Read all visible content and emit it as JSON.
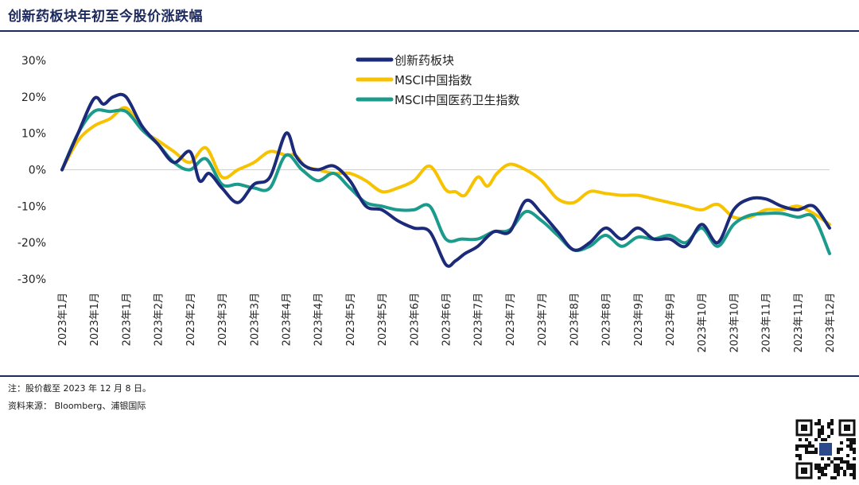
{
  "header": {
    "title": "创新药板块年初至今股价涨跌幅"
  },
  "footer": {
    "note": "注：股价截至 2023 年 12 月 8 日。",
    "source": "资料来源：  Bloomberg、浦银国际"
  },
  "colors": {
    "navy": "#1c2a7a",
    "gold": "#f7c200",
    "teal": "#1a9b8c",
    "rule": "#1c2a5e"
  },
  "chart_data": {
    "type": "line",
    "title": "创新药板块年初至今股价涨跌幅",
    "ylim": [
      -30,
      30
    ],
    "yticks": [
      -30,
      -20,
      -10,
      0,
      10,
      20,
      30
    ],
    "ytick_labels": [
      "-30%",
      "-20%",
      "-10%",
      "0%",
      "10%",
      "20%",
      "30%"
    ],
    "categories": [
      "2023年1月",
      "2023年1月",
      "2023年1月",
      "2023年2月",
      "2023年2月",
      "2023年3月",
      "2023年3月",
      "2023年4月",
      "2023年4月",
      "2023年5月",
      "2023年5月",
      "2023年6月",
      "2023年6月",
      "2023年7月",
      "2023年7月",
      "2023年7月",
      "2023年8月",
      "2023年8月",
      "2023年9月",
      "2023年9月",
      "2023年10月",
      "2023年10月",
      "2023年11月",
      "2023年11月",
      "2023年12月"
    ],
    "legend_position": "top-center",
    "series": [
      {
        "name": "创新药板块",
        "color": "#1c2a7a",
        "x": [
          0,
          0.5,
          1,
          1.3,
          1.6,
          2,
          2.5,
          3,
          3.5,
          4,
          4.3,
          4.6,
          5,
          5.5,
          6,
          6.5,
          7,
          7.3,
          7.6,
          8,
          8.5,
          9,
          9.5,
          10,
          10.5,
          11,
          11.5,
          12,
          12.3,
          12.6,
          13,
          13.5,
          14,
          14.5,
          15,
          15.5,
          16,
          16.5,
          17,
          17.5,
          18,
          18.5,
          19,
          19.5,
          20,
          20.5,
          21,
          21.5,
          22,
          22.5,
          23,
          23.5,
          24
        ],
        "values": [
          0,
          10,
          19.5,
          18,
          20,
          20,
          12,
          7,
          2,
          5,
          -3,
          -1,
          -5,
          -9,
          -4,
          -2,
          10,
          4,
          1,
          0,
          1,
          -3,
          -10,
          -11,
          -14,
          -16,
          -17,
          -26,
          -25,
          -23,
          -21,
          -17,
          -17,
          -8.5,
          -12,
          -17,
          -22,
          -20,
          -16,
          -19,
          -16,
          -19,
          -19,
          -21,
          -15,
          -20,
          -11,
          -8,
          -8,
          -10,
          -11,
          -10,
          -16
        ]
      },
      {
        "name": "MSCI中国指数",
        "color": "#f7c200",
        "x": [
          0,
          0.5,
          1,
          1.5,
          2,
          2.5,
          3,
          3.5,
          4,
          4.5,
          5,
          5.5,
          6,
          6.5,
          7,
          7.3,
          7.6,
          8,
          8.5,
          9,
          9.5,
          10,
          10.5,
          11,
          11.5,
          12,
          12.3,
          12.6,
          13,
          13.3,
          13.6,
          14,
          14.5,
          15,
          15.5,
          16,
          16.5,
          17,
          17.5,
          18,
          18.5,
          19,
          19.5,
          20,
          20.5,
          21,
          21.5,
          22,
          22.5,
          23,
          23.5,
          24
        ],
        "values": [
          0,
          8,
          12,
          14,
          17,
          11,
          8,
          5,
          2,
          6,
          -2,
          0,
          2,
          5,
          4,
          4,
          1,
          0,
          -1,
          -1,
          -3,
          -6,
          -5,
          -3,
          1,
          -5.5,
          -6,
          -7,
          -2,
          -4.5,
          -1,
          1.5,
          0,
          -3,
          -8,
          -9,
          -6,
          -6.5,
          -7,
          -7,
          -8,
          -9,
          -10,
          -11,
          -9.5,
          -13,
          -13,
          -11,
          -11,
          -10,
          -12,
          -15
        ]
      },
      {
        "name": "MSCI中国医药卫生指数",
        "color": "#1a9b8c",
        "x": [
          0,
          0.5,
          1,
          1.5,
          2,
          2.5,
          3,
          3.5,
          4,
          4.5,
          5,
          5.5,
          6,
          6.5,
          7,
          7.5,
          8,
          8.5,
          9,
          9.5,
          10,
          10.5,
          11,
          11.5,
          12,
          12.5,
          13,
          13.5,
          14,
          14.5,
          15,
          15.5,
          16,
          16.5,
          17,
          17.5,
          18,
          18.5,
          19,
          19.5,
          20,
          20.5,
          21,
          21.5,
          22,
          22.5,
          23,
          23.5,
          24
        ],
        "values": [
          0,
          10,
          16,
          16,
          16,
          11,
          7,
          2,
          0,
          3,
          -4,
          -4,
          -5,
          -5,
          4,
          0,
          -3,
          -1,
          -5,
          -9,
          -10,
          -11,
          -11,
          -10,
          -19,
          -19,
          -19,
          -17,
          -16.5,
          -11.5,
          -14,
          -18,
          -22,
          -21,
          -18,
          -21,
          -18.5,
          -19,
          -18,
          -20,
          -16,
          -21,
          -15,
          -12.5,
          -12,
          -12,
          -13,
          -13,
          -23
        ]
      }
    ]
  }
}
